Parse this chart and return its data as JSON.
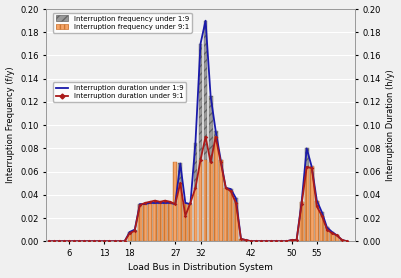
{
  "buses": [
    2,
    3,
    4,
    5,
    6,
    7,
    8,
    9,
    10,
    11,
    12,
    13,
    14,
    15,
    16,
    17,
    18,
    19,
    20,
    21,
    22,
    23,
    24,
    25,
    26,
    27,
    28,
    29,
    30,
    31,
    32,
    33,
    34,
    35,
    36,
    37,
    38,
    39,
    40,
    41,
    42,
    43,
    44,
    45,
    46,
    47,
    48,
    49,
    50,
    51,
    52,
    53,
    54,
    55,
    56,
    57,
    58,
    59,
    60,
    61
  ],
  "freq_19": [
    0.0,
    0.0,
    0.0,
    0.0,
    0.0,
    0.0,
    0.0,
    0.0,
    0.0,
    0.0,
    0.0,
    0.0,
    0.0,
    0.0,
    0.0,
    0.0,
    0.008,
    0.01,
    0.032,
    0.032,
    0.033,
    0.033,
    0.033,
    0.033,
    0.033,
    0.032,
    0.067,
    0.033,
    0.032,
    0.085,
    0.17,
    0.19,
    0.125,
    0.095,
    0.07,
    0.046,
    0.045,
    0.037,
    0.002,
    0.001,
    0.0,
    0.0,
    0.0,
    0.0,
    0.0,
    0.0,
    0.0,
    0.0,
    0.001,
    0.001,
    0.034,
    0.08,
    0.064,
    0.035,
    0.025,
    0.012,
    0.008,
    0.005,
    0.001,
    0.0
  ],
  "freq_91": [
    0.0,
    0.0,
    0.0,
    0.0,
    0.0,
    0.0,
    0.0,
    0.0,
    0.0,
    0.0,
    0.0,
    0.0,
    0.0,
    0.0,
    0.0,
    0.0,
    0.007,
    0.009,
    0.031,
    0.031,
    0.032,
    0.032,
    0.032,
    0.032,
    0.032,
    0.068,
    0.05,
    0.033,
    0.031,
    0.046,
    0.07,
    0.07,
    0.068,
    0.09,
    0.07,
    0.046,
    0.043,
    0.033,
    0.002,
    0.001,
    0.0,
    0.0,
    0.0,
    0.0,
    0.0,
    0.0,
    0.0,
    0.0,
    0.001,
    0.001,
    0.034,
    0.064,
    0.065,
    0.035,
    0.022,
    0.012,
    0.007,
    0.005,
    0.001,
    0.0
  ],
  "dur_19": [
    0.0,
    0.0,
    0.0,
    0.0,
    0.0,
    0.0,
    0.0,
    0.0,
    0.0,
    0.0,
    0.0,
    0.0,
    0.0,
    0.0,
    0.0,
    0.0,
    0.008,
    0.01,
    0.032,
    0.032,
    0.033,
    0.033,
    0.033,
    0.033,
    0.033,
    0.032,
    0.067,
    0.033,
    0.032,
    0.085,
    0.17,
    0.19,
    0.125,
    0.095,
    0.07,
    0.046,
    0.045,
    0.037,
    0.002,
    0.001,
    0.0,
    0.0,
    0.0,
    0.0,
    0.0,
    0.0,
    0.0,
    0.0,
    0.001,
    0.001,
    0.034,
    0.08,
    0.064,
    0.035,
    0.025,
    0.012,
    0.008,
    0.005,
    0.001,
    0.0
  ],
  "dur_91": [
    0.0,
    0.0,
    0.0,
    0.0,
    0.0,
    0.0,
    0.0,
    0.0,
    0.0,
    0.0,
    0.0,
    0.0,
    0.0,
    0.0,
    0.0,
    0.0,
    0.007,
    0.009,
    0.031,
    0.033,
    0.034,
    0.035,
    0.034,
    0.035,
    0.034,
    0.032,
    0.05,
    0.022,
    0.033,
    0.046,
    0.07,
    0.09,
    0.068,
    0.09,
    0.068,
    0.046,
    0.043,
    0.033,
    0.002,
    0.001,
    0.0,
    0.0,
    0.0,
    0.0,
    0.0,
    0.0,
    0.0,
    0.0,
    0.001,
    0.001,
    0.032,
    0.064,
    0.063,
    0.03,
    0.022,
    0.01,
    0.007,
    0.005,
    0.001,
    0.0
  ],
  "xtick_positions": [
    6,
    13,
    18,
    27,
    32,
    42,
    50,
    55
  ],
  "xtick_labels": [
    "6",
    "13",
    "18",
    "27",
    "32",
    "42",
    "50",
    "55"
  ],
  "ylim": [
    0.0,
    0.2
  ],
  "yticks": [
    0.0,
    0.02,
    0.04,
    0.06,
    0.08,
    0.1,
    0.12,
    0.14,
    0.16,
    0.18,
    0.2
  ],
  "bar_color_19": "#999999",
  "bar_hatch_19": "////",
  "bar_edgecolor_19": "#666666",
  "bar_color_91": "#f5a468",
  "bar_hatch_91": "||||",
  "bar_edgecolor_91": "#cc7733",
  "line_color_19": "#1a1aaa",
  "line_color_91": "#aa1a1a",
  "marker_91": "D",
  "xlabel": "Load Bus in Distribution System",
  "ylabel_left": "Interruption Frequency (f/y)",
  "ylabel_right": "Interruption Duration (h/y)",
  "legend1_labels": [
    "Interruption frequency under 1:9",
    "Interruption frequency under 9:1"
  ],
  "legend2_labels": [
    "Interruption duration under 1:9",
    "Interruption duration under 9:1"
  ],
  "bg_color": "#f0f0f0",
  "grid_color": "#ffffff",
  "xlim": [
    1.5,
    62.5
  ]
}
